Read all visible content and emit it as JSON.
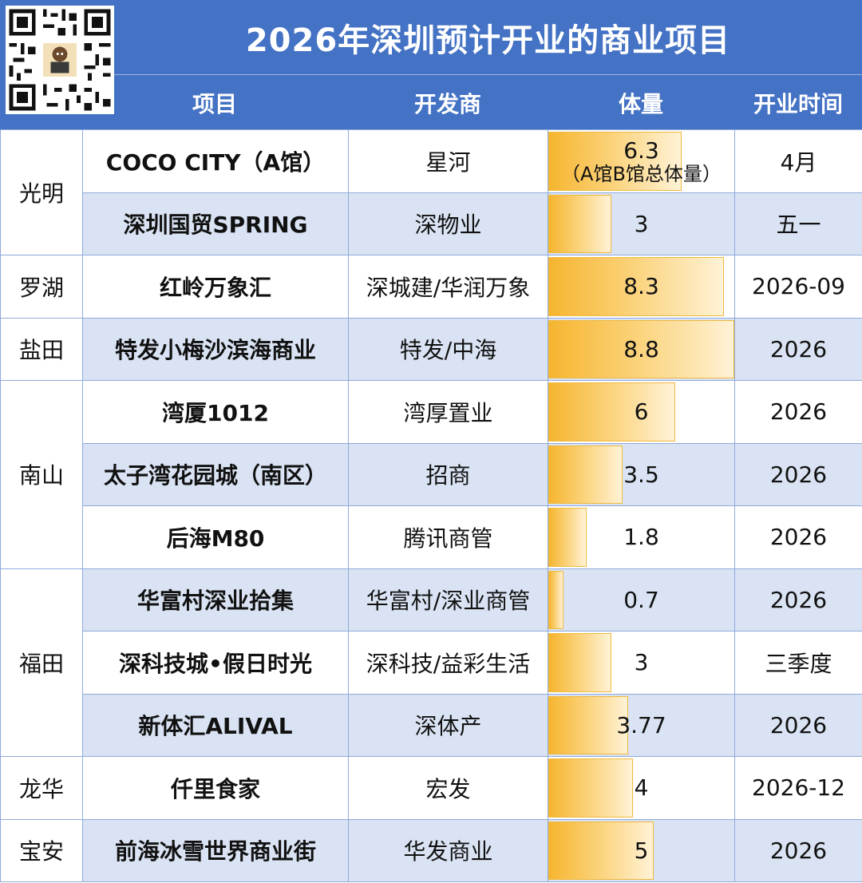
{
  "title": "2026年深圳预计开业的商业项目",
  "columns": {
    "project": "项目",
    "developer": "开发商",
    "volume": "体量",
    "opening": "开业时间"
  },
  "colors": {
    "header_bg": "#4472c4",
    "row_alt": "#dae3f3",
    "border": "#8faadc",
    "bar": "#f6b52f"
  },
  "districts": {
    "guangming": "光明",
    "luohu": "罗湖",
    "yantian": "盐田",
    "nanshan": "南山",
    "futian": "福田",
    "longhua": "龙华",
    "baoan": "宝安"
  },
  "max_volume": 8.8,
  "rows": [
    {
      "name": "COCO CITY（A馆）",
      "developer": "星河",
      "volume": 6.3,
      "volume_label": "6.3",
      "volume_note": "（A馆B馆总体量）",
      "opening": "4月"
    },
    {
      "name": "深圳国贸SPRING",
      "developer": "深物业",
      "volume": 3,
      "volume_label": "3",
      "opening": "五一"
    },
    {
      "name": "红岭万象汇",
      "developer": "深城建/华润万象",
      "volume": 8.3,
      "volume_label": "8.3",
      "opening": "2026-09"
    },
    {
      "name": "特发小梅沙滨海商业",
      "developer": "特发/中海",
      "volume": 8.8,
      "volume_label": "8.8",
      "opening": "2026"
    },
    {
      "name": "湾厦1012",
      "developer": "湾厚置业",
      "volume": 6,
      "volume_label": "6",
      "opening": "2026"
    },
    {
      "name": "太子湾花园城（南区）",
      "developer": "招商",
      "volume": 3.5,
      "volume_label": "3.5",
      "opening": "2026"
    },
    {
      "name": "后海M80",
      "developer": "腾讯商管",
      "volume": 1.8,
      "volume_label": "1.8",
      "opening": "2026"
    },
    {
      "name": "华富村深业拾集",
      "developer": "华富村/深业商管",
      "volume": 0.7,
      "volume_label": "0.7",
      "opening": "2026"
    },
    {
      "name": "深科技城•假日时光",
      "developer": "深科技/益彩生活",
      "volume": 3,
      "volume_label": "3",
      "opening": "三季度"
    },
    {
      "name": "新体汇ALIVAL",
      "developer": "深体产",
      "volume": 3.77,
      "volume_label": "3.77",
      "opening": "2026"
    },
    {
      "name": "仟里食家",
      "developer": "宏发",
      "volume": 4,
      "volume_label": "4",
      "opening": "2026-12"
    },
    {
      "name": "前海冰雪世界商业街",
      "developer": "华发商业",
      "volume": 5,
      "volume_label": "5",
      "opening": "2026"
    }
  ]
}
